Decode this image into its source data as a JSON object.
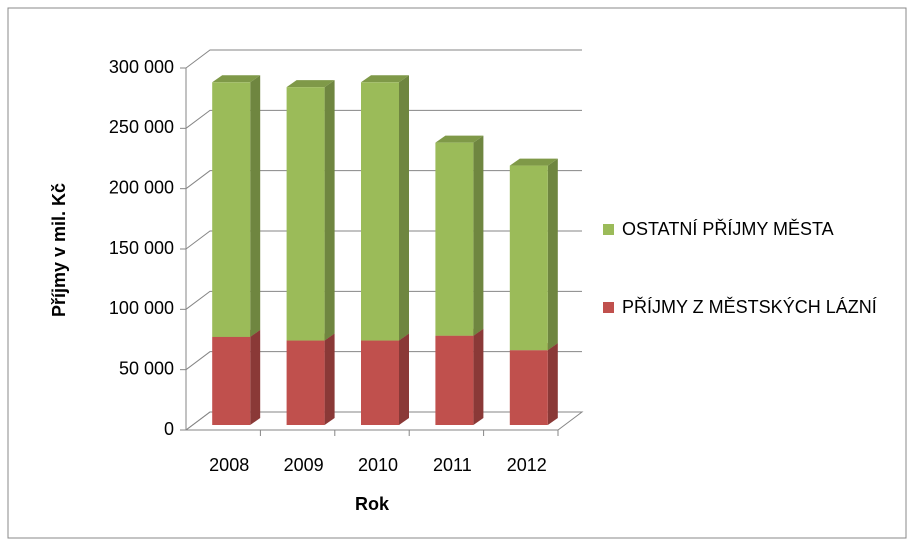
{
  "chart_data": {
    "type": "bar3d_stacked",
    "categories": [
      "2008",
      "2009",
      "2010",
      "2011",
      "2012"
    ],
    "series": [
      {
        "name": "PŘÍJMY Z MĚSTSKÝCH LÁZNÍ",
        "color": "#c0504d",
        "values": [
          73000,
          70000,
          70000,
          74000,
          62000
        ]
      },
      {
        "name": "OSTATNÍ PŘÍJMY MĚSTA",
        "color": "#9bbb59",
        "values": [
          211000,
          210000,
          214000,
          160000,
          153000
        ]
      }
    ],
    "x_label": "Rok",
    "y_label": "Příjmy v mil. Kč",
    "ylim": [
      0,
      300000
    ],
    "yticks": [
      0,
      {
        "value": 50000,
        "label": "50 000"
      },
      {
        "value": 100000,
        "label": "100 000"
      },
      {
        "value": 150000,
        "label": "150 000"
      },
      {
        "value": 200000,
        "label": "200 000"
      },
      {
        "value": 250000,
        "label": "250 000"
      },
      {
        "value": 300000,
        "label": "300 000"
      }
    ],
    "grid": true,
    "legend": "right"
  }
}
